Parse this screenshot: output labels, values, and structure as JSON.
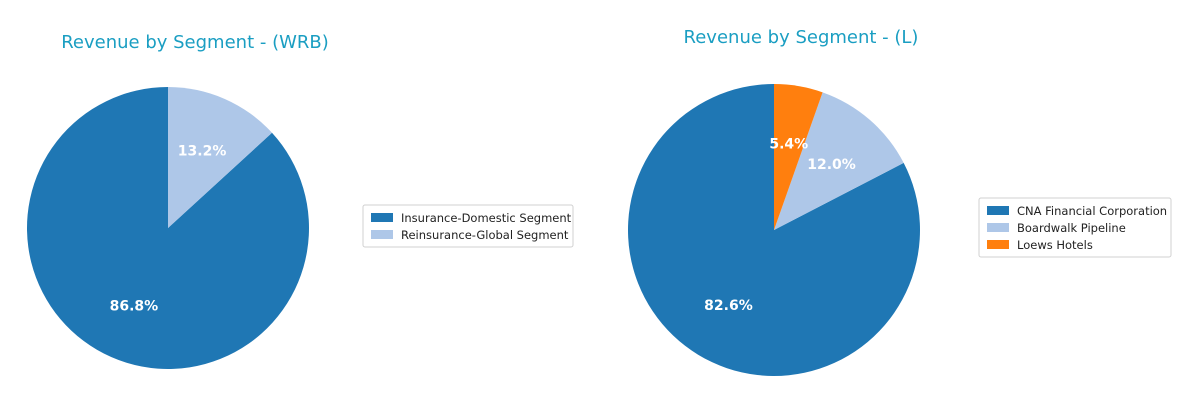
{
  "chart_data": [
    {
      "type": "pie",
      "title": "Revenue by Segment - (WRB)",
      "slices": [
        {
          "label": "Insurance-Domestic Segment",
          "value": 86.8,
          "display": "86.8%",
          "color": "#1f77b4"
        },
        {
          "label": "Reinsurance-Global Segment",
          "value": 13.2,
          "display": "13.2%",
          "color": "#aec7e8"
        }
      ],
      "start_angle_deg": 90,
      "direction": "counterclockwise",
      "legend": "right"
    },
    {
      "type": "pie",
      "title": "Revenue by Segment - (L)",
      "slices": [
        {
          "label": "CNA Financial Corporation",
          "value": 82.6,
          "display": "82.6%",
          "color": "#1f77b4"
        },
        {
          "label": "Boardwalk Pipeline",
          "value": 12.0,
          "display": "12.0%",
          "color": "#aec7e8"
        },
        {
          "label": "Loews Hotels",
          "value": 5.4,
          "display": "5.4%",
          "color": "#ff7f0e"
        }
      ],
      "start_angle_deg": 90,
      "direction": "counterclockwise",
      "legend": "right"
    }
  ]
}
